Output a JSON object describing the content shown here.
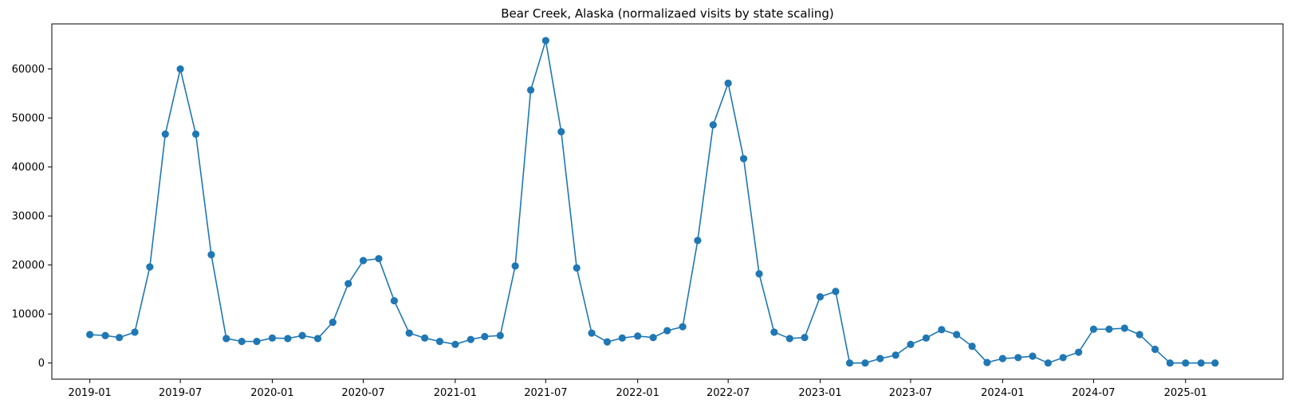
{
  "chart_data": {
    "type": "line",
    "title": "Bear Creek, Alaska (normalizaed visits by state scaling)",
    "xlabel": "",
    "ylabel": "",
    "x_tick_labels": [
      "2019-01",
      "2019-07",
      "2020-01",
      "2020-07",
      "2021-01",
      "2021-07",
      "2022-01",
      "2022-07",
      "2023-01",
      "2023-07",
      "2024-01",
      "2024-07",
      "2025-01"
    ],
    "y_ticks": [
      0,
      10000,
      20000,
      30000,
      40000,
      50000,
      60000
    ],
    "y_tick_labels": [
      "0",
      "10000",
      "20000",
      "30000",
      "40000",
      "50000",
      "60000"
    ],
    "xlim": [
      "2018-10-17",
      "2025-07-15"
    ],
    "ylim": [
      -3300,
      69200
    ],
    "grid": false,
    "markers": true,
    "series": [
      {
        "color": "#1f77b4",
        "x": [
          "2019-01",
          "2019-02",
          "2019-03",
          "2019-04",
          "2019-05",
          "2019-06",
          "2019-07",
          "2019-08",
          "2019-09",
          "2019-10",
          "2019-11",
          "2019-12",
          "2020-01",
          "2020-02",
          "2020-03",
          "2020-04",
          "2020-05",
          "2020-06",
          "2020-07",
          "2020-08",
          "2020-09",
          "2020-10",
          "2020-11",
          "2020-12",
          "2021-01",
          "2021-02",
          "2021-03",
          "2021-04",
          "2021-05",
          "2021-06",
          "2021-07",
          "2021-08",
          "2021-09",
          "2021-10",
          "2021-11",
          "2021-12",
          "2022-01",
          "2022-02",
          "2022-03",
          "2022-04",
          "2022-05",
          "2022-06",
          "2022-07",
          "2022-08",
          "2022-09",
          "2022-10",
          "2022-11",
          "2022-12",
          "2023-01",
          "2023-02",
          "2023-03",
          "2023-04",
          "2023-05",
          "2023-06",
          "2023-07",
          "2023-08",
          "2023-09",
          "2023-10",
          "2023-11",
          "2023-12",
          "2024-01",
          "2024-02",
          "2024-03",
          "2024-04",
          "2024-05",
          "2024-06",
          "2024-07",
          "2024-08",
          "2024-09",
          "2024-10",
          "2024-11",
          "2024-12",
          "2025-01",
          "2025-02",
          "2025-03"
        ],
        "values": [
          5800,
          5600,
          5200,
          6300,
          19600,
          46700,
          60000,
          46700,
          22100,
          5000,
          4400,
          4400,
          5100,
          5000,
          5600,
          5000,
          8300,
          16200,
          20900,
          21300,
          12700,
          6100,
          5100,
          4400,
          3800,
          4800,
          5400,
          5600,
          19800,
          55700,
          65800,
          47200,
          19400,
          6100,
          4300,
          5100,
          5500,
          5200,
          6600,
          7400,
          25000,
          48600,
          57100,
          41700,
          18200,
          6300,
          5000,
          5200,
          13500,
          14600,
          0,
          0,
          900,
          1600,
          3800,
          5100,
          6800,
          5800,
          3400,
          100,
          900,
          1100,
          1400,
          0,
          1100,
          2200,
          6900,
          6900,
          7100,
          5800,
          2800,
          0,
          0,
          0,
          0
        ]
      }
    ]
  }
}
